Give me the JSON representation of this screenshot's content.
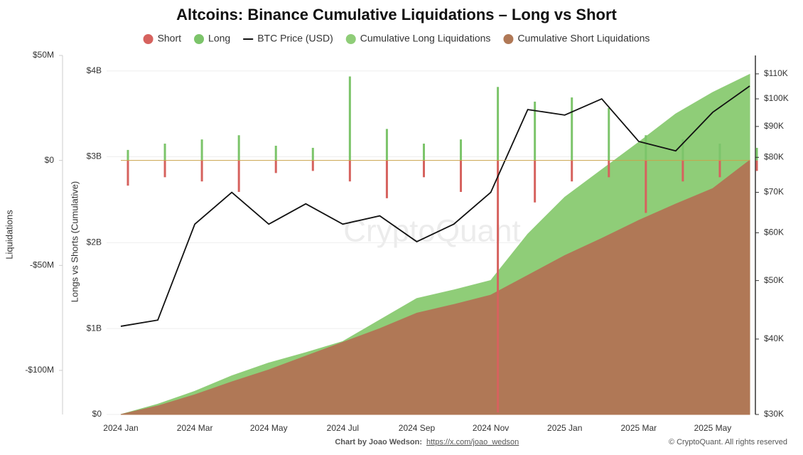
{
  "chart_data": {
    "type": "combo",
    "title": "Altcoins: Binance Cumulative Liquidations – Long vs Short",
    "watermark": "CryptoQuant",
    "footer": {
      "credit": "Chart by Joao Wedson:",
      "link": "https://x.com/joao_wedson",
      "copyright": "© CryptoQuant. All rights reserved"
    },
    "y3_label": "Liquidations",
    "ylabel": "Longs vs Shorts (Cumulative)",
    "x": [
      "2024-01",
      "2024-02",
      "2024-03",
      "2024-04",
      "2024-05",
      "2024-06",
      "2024-07",
      "2024-08",
      "2024-09",
      "2024-10",
      "2024-11",
      "2024-12",
      "2025-01",
      "2025-02",
      "2025-03",
      "2025-04",
      "2025-05",
      "2025-06"
    ],
    "xticks": [
      {
        "value": "2024-01",
        "label": "2024 Jan"
      },
      {
        "value": "2024-03",
        "label": "2024 Mar"
      },
      {
        "value": "2024-05",
        "label": "2024 May"
      },
      {
        "value": "2024-07",
        "label": "2024 Jul"
      },
      {
        "value": "2024-09",
        "label": "2024 Sep"
      },
      {
        "value": "2024-11",
        "label": "2024 Nov"
      },
      {
        "value": "2025-01",
        "label": "2025 Jan"
      },
      {
        "value": "2025-03",
        "label": "2025 Mar"
      },
      {
        "value": "2025-05",
        "label": "2025 May"
      }
    ],
    "ylim": [
      0,
      4.18
    ],
    "yticks": [
      {
        "value": 0,
        "label": "$0"
      },
      {
        "value": 1,
        "label": "$1B"
      },
      {
        "value": 2,
        "label": "$2B"
      },
      {
        "value": 3,
        "label": "$3B"
      },
      {
        "value": 4,
        "label": "$4B"
      }
    ],
    "y2lim": [
      30000,
      118000
    ],
    "y2log": true,
    "y2ticks": [
      {
        "value": 30000,
        "label": "$30K"
      },
      {
        "value": 40000,
        "label": "$40K"
      },
      {
        "value": 50000,
        "label": "$50K"
      },
      {
        "value": 60000,
        "label": "$60K"
      },
      {
        "value": 70000,
        "label": "$70K"
      },
      {
        "value": 80000,
        "label": "$80K"
      },
      {
        "value": 90000,
        "label": "$90K"
      },
      {
        "value": 100000,
        "label": "$100K"
      },
      {
        "value": 110000,
        "label": "$110K"
      }
    ],
    "y3lim": [
      -121,
      50
    ],
    "y3ticks": [
      {
        "value": 50,
        "label": "$50M"
      },
      {
        "value": 0,
        "label": "$0"
      },
      {
        "value": -50,
        "label": "-$50M"
      },
      {
        "value": -100,
        "label": "-$100M"
      }
    ],
    "grid": true,
    "series": [
      {
        "name": "Short",
        "type": "bar",
        "axis": "y3",
        "color": "#d6625e",
        "values": [
          -12,
          -8,
          -10,
          -15,
          -6,
          -5,
          -10,
          -18,
          -8,
          -15,
          -120,
          -20,
          -10,
          -8,
          -25,
          -10,
          -8,
          -5
        ]
      },
      {
        "name": "Long",
        "type": "bar",
        "axis": "y3",
        "color": "#7cc46a",
        "values": [
          5,
          8,
          10,
          12,
          7,
          6,
          40,
          15,
          8,
          10,
          35,
          28,
          30,
          25,
          12,
          10,
          8,
          6
        ]
      },
      {
        "name": "BTC Price (USD)",
        "type": "line",
        "axis": "y2",
        "color": "#111111",
        "values": [
          42000,
          43000,
          62000,
          70000,
          62000,
          67000,
          62000,
          64000,
          58000,
          62000,
          70000,
          96000,
          94000,
          100000,
          85000,
          82000,
          95000,
          105000
        ]
      },
      {
        "name": "Cumulative Long Liquidations",
        "type": "area",
        "axis": "y",
        "color": "#8fcd78",
        "values": [
          0,
          0.12,
          0.27,
          0.45,
          0.6,
          0.72,
          0.85,
          1.1,
          1.35,
          1.45,
          1.56,
          2.1,
          2.53,
          2.85,
          3.17,
          3.5,
          3.75,
          3.96
        ]
      },
      {
        "name": "Cumulative Short Liquidations",
        "type": "area",
        "axis": "y",
        "color": "#b07856",
        "values": [
          0,
          0.1,
          0.23,
          0.38,
          0.52,
          0.68,
          0.84,
          1.0,
          1.18,
          1.28,
          1.39,
          1.62,
          1.85,
          2.05,
          2.26,
          2.45,
          2.63,
          2.96
        ]
      }
    ]
  }
}
